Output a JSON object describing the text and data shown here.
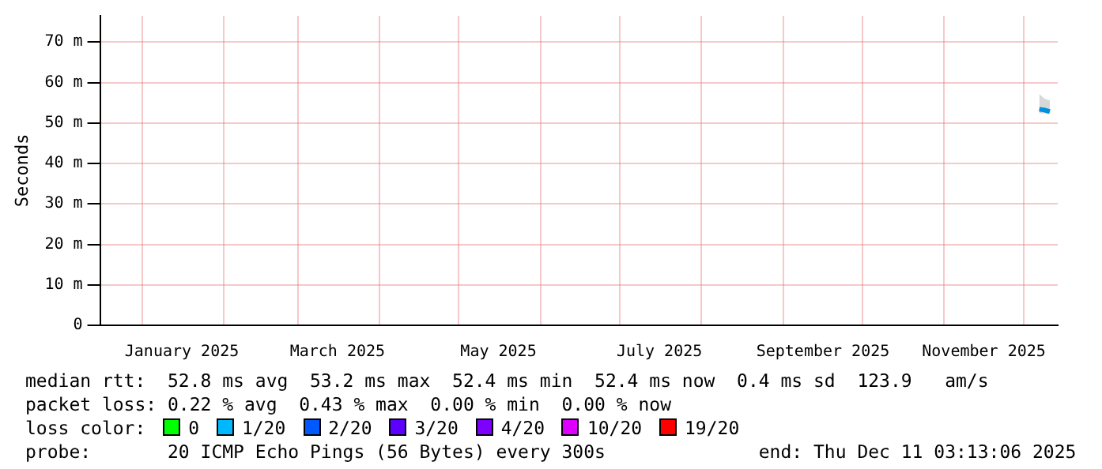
{
  "chart_data": {
    "type": "line",
    "ylabel": "Seconds",
    "x": [
      "2025-12-07T00:00",
      "2025-12-09T00:00",
      "2025-12-11T00:00"
    ],
    "series": [
      {
        "color": "#0090e0",
        "values": [
          53.4,
          53.2,
          52.8
        ],
        "lower": [
          52.4,
          52.4,
          52.4
        ],
        "upper": [
          57.2,
          56.0,
          55.6
        ]
      }
    ],
    "xlim": [
      "2024-12-16",
      "2025-12-14"
    ],
    "xticks": [
      {
        "value": "2025-01-01",
        "label": null
      },
      {
        "value": "2025-01-16",
        "label": "January 2025"
      },
      {
        "value": "2025-02-01",
        "label": null
      },
      {
        "value": "2025-03-01",
        "label": null
      },
      {
        "value": "2025-03-16",
        "label": "March 2025"
      },
      {
        "value": "2025-04-01",
        "label": null
      },
      {
        "value": "2025-05-01",
        "label": null
      },
      {
        "value": "2025-05-16",
        "label": "May 2025"
      },
      {
        "value": "2025-06-01",
        "label": null
      },
      {
        "value": "2025-07-01",
        "label": null
      },
      {
        "value": "2025-07-16",
        "label": "July 2025"
      },
      {
        "value": "2025-08-01",
        "label": null
      },
      {
        "value": "2025-09-01",
        "label": null
      },
      {
        "value": "2025-09-16",
        "label": "September 2025"
      },
      {
        "value": "2025-10-01",
        "label": null
      },
      {
        "value": "2025-11-01",
        "label": null
      },
      {
        "value": "2025-11-16",
        "label": "November 2025"
      },
      {
        "value": "2025-12-01",
        "label": null
      }
    ],
    "ylim": [
      0,
      76.5
    ],
    "yticks": [
      0,
      {
        "value": 10,
        "label": "10 m"
      },
      {
        "value": 20,
        "label": "20 m"
      },
      {
        "value": 30,
        "label": "30 m"
      },
      {
        "value": 40,
        "label": "40 m"
      },
      {
        "value": 50,
        "label": "50 m"
      },
      {
        "value": 60,
        "label": "60 m"
      },
      {
        "value": 70,
        "label": "70 m"
      }
    ],
    "grid": true,
    "marker": "none",
    "legend": false,
    "annotations": [
      "median rtt:  52.8 ms avg  53.2 ms max  52.4 ms min  52.4 ms now  0.4 ms sd  123.9   am/s",
      "packet loss: 0.22 % avg  0.43 % max  0.00 % min  0.00 % now",
      "loss color:  0  1/20  2/20  3/20  4/20  10/20  19/20",
      "probe:       20 ICMP Echo Pings (56 Bytes) every 300s              end: Thu Dec 11 03:13:06 2025"
    ]
  }
}
